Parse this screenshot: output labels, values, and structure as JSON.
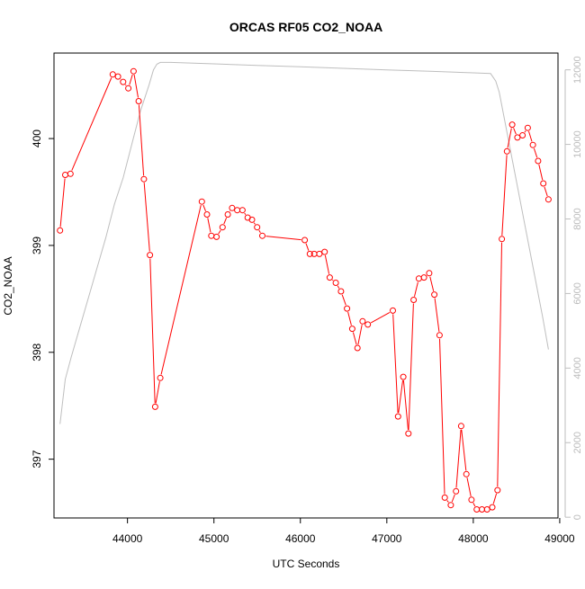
{
  "chart_data": {
    "type": "line",
    "title": "ORCAS RF05 CO2_NOAA",
    "xlabel": "UTC Seconds",
    "ylabel": "CO2_NOAA",
    "xlim": [
      43150,
      48980
    ],
    "ylim": [
      396.45,
      400.8
    ],
    "y2lim": [
      -20,
      12450
    ],
    "x_ticks": [
      44000,
      45000,
      46000,
      47000,
      48000,
      49000
    ],
    "y_ticks": [
      397,
      398,
      399,
      400
    ],
    "y2_ticks": [
      0,
      2000,
      4000,
      6000,
      8000,
      10000,
      12000
    ],
    "colors": {
      "co2": "#ff0000",
      "altitude": "#bebebe",
      "axis": "#000000",
      "right_axis": "#bebebe"
    },
    "series": [
      {
        "axis": "left",
        "style": "points-and-lines",
        "x": [
          43220,
          43280,
          43340,
          43830,
          43890,
          43950,
          44010,
          44070,
          44130,
          44190,
          44260,
          44320,
          44380,
          44860,
          44920,
          44970,
          45030,
          45100,
          45160,
          45210,
          45270,
          45330,
          45390,
          45440,
          45500,
          45560,
          46050,
          46110,
          46160,
          46220,
          46280,
          46340,
          46410,
          46470,
          46540,
          46600,
          46660,
          46720,
          46780,
          47070,
          47130,
          47190,
          47250,
          47310,
          47370,
          47430,
          47490,
          47550,
          47610,
          47670,
          47740,
          47800,
          47860,
          47920,
          47980,
          48040,
          48100,
          48160,
          48220,
          48280,
          48330,
          48390,
          48450,
          48510,
          48570,
          48630,
          48690,
          48750,
          48810,
          48870
        ],
        "y": [
          399.14,
          399.66,
          399.67,
          400.6,
          400.58,
          400.53,
          400.47,
          400.63,
          400.35,
          399.62,
          398.91,
          397.49,
          397.76,
          399.41,
          399.29,
          399.09,
          399.08,
          399.17,
          399.29,
          399.35,
          399.33,
          399.33,
          399.26,
          399.24,
          399.17,
          399.09,
          399.05,
          398.92,
          398.92,
          398.92,
          398.94,
          398.7,
          398.65,
          398.57,
          398.41,
          398.22,
          398.04,
          398.29,
          398.26,
          398.39,
          397.4,
          397.77,
          397.24,
          398.49,
          398.69,
          398.7,
          398.74,
          398.54,
          398.16,
          396.64,
          396.57,
          396.7,
          397.31,
          396.86,
          396.62,
          396.53,
          396.53,
          396.53,
          396.55,
          396.71,
          399.06,
          399.88,
          400.13,
          400.01,
          400.03,
          400.1,
          399.94,
          399.79,
          399.58,
          399.43
        ]
      },
      {
        "axis": "right",
        "style": "line",
        "x": [
          43220,
          43280,
          43350,
          43450,
          43550,
          43650,
          43750,
          43850,
          43950,
          44050,
          44150,
          44250,
          44300,
          44340,
          44380,
          44500,
          45000,
          45500,
          46000,
          46500,
          47000,
          47500,
          48000,
          48200,
          48260,
          48300,
          48350,
          48400,
          48500,
          48600,
          48700,
          48800,
          48870
        ],
        "y": [
          2500,
          3700,
          4300,
          5100,
          5900,
          6700,
          7500,
          8400,
          9100,
          10000,
          10900,
          11600,
          12000,
          12150,
          12200,
          12200,
          12160,
          12120,
          12080,
          12040,
          12000,
          11960,
          11920,
          11900,
          11700,
          11400,
          10800,
          10200,
          9000,
          7800,
          6600,
          5400,
          4500
        ]
      }
    ]
  }
}
